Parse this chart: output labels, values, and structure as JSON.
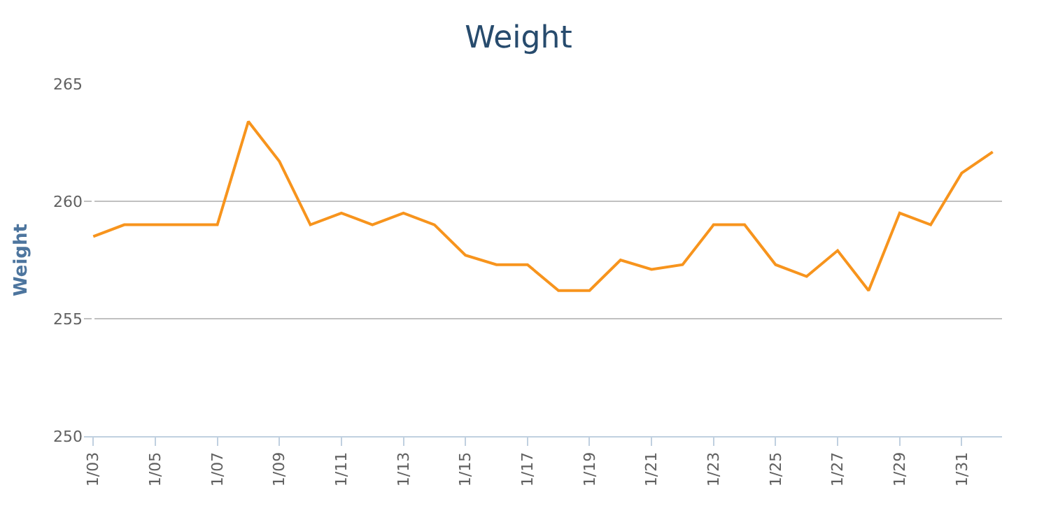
{
  "chart_data": {
    "type": "line",
    "title": "Weight",
    "ylabel": "Weight",
    "categories": [
      "1/03",
      null,
      "1/05",
      null,
      "1/07",
      null,
      "1/09",
      null,
      "1/11",
      null,
      "1/13",
      null,
      "1/15",
      null,
      "1/17",
      null,
      "1/19",
      null,
      "1/21",
      null,
      "1/23",
      null,
      "1/25",
      null,
      "1/27",
      null,
      "1/29",
      null,
      "1/31",
      null
    ],
    "series": [
      {
        "color": "#f7941d",
        "values": [
          258.5,
          259.0,
          259.0,
          259.0,
          259.0,
          263.4,
          261.7,
          259.0,
          259.5,
          259.0,
          259.5,
          259.0,
          257.7,
          257.3,
          257.3,
          256.2,
          256.2,
          257.5,
          257.1,
          257.3,
          259.0,
          259.0,
          257.3,
          256.8,
          257.9,
          256.2,
          259.5,
          259.0,
          261.2,
          262.1
        ]
      }
    ],
    "ylim": [
      250,
      265
    ],
    "yticks": [
      250,
      255,
      260,
      265
    ],
    "grid": "y",
    "marker": "none",
    "line_style": "solid"
  }
}
